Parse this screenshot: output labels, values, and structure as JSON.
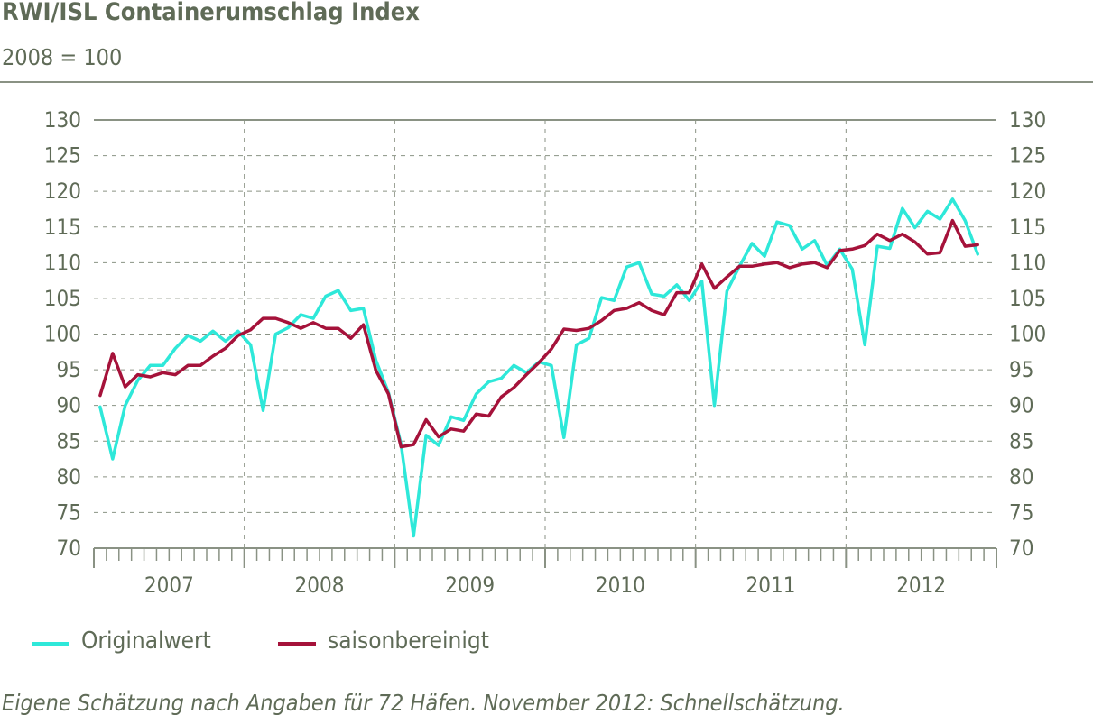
{
  "title": "RWI/ISL Containerumschlag Index",
  "subtitle": "2008 = 100",
  "caption": "Eigene Schätzung nach Angaben für 72 Häfen. November 2012: Schnellschätzung.",
  "colors": {
    "original": "#2ee8d9",
    "seasonal": "#a5123a",
    "grid": "#8a9284",
    "text": "#5f6b57"
  },
  "legend": {
    "original": "Originalwert",
    "seasonal": "saisonbereinigt"
  },
  "chart_data": {
    "type": "line",
    "ylim": [
      70,
      130
    ],
    "yticks": [
      70,
      75,
      80,
      85,
      90,
      95,
      100,
      105,
      110,
      115,
      120,
      125,
      130
    ],
    "ytick_labels": [
      "70",
      "75",
      "80",
      "85",
      "90",
      "95",
      "100",
      "105",
      "110",
      "115",
      "120",
      "125",
      "130"
    ],
    "years": [
      "2007",
      "2008",
      "2009",
      "2010",
      "2011",
      "2012"
    ],
    "x_unit": "month",
    "x_start": "2007-01",
    "grid": true,
    "legend_position": "bottom-left",
    "series": [
      {
        "name": "Originalwert",
        "color": "#2ee8d9",
        "values": [
          89.8,
          82.5,
          90.0,
          93.5,
          95.6,
          95.6,
          98.0,
          99.8,
          99.0,
          100.4,
          99.0,
          100.4,
          98.5,
          89.3,
          100.0,
          100.9,
          102.7,
          102.2,
          105.3,
          106.1,
          103.3,
          103.6,
          96.3,
          91.8,
          84.6,
          71.7,
          85.8,
          84.4,
          88.4,
          87.9,
          91.6,
          93.3,
          93.8,
          95.6,
          94.6,
          96.1,
          95.6,
          85.5,
          98.5,
          99.4,
          105.1,
          104.7,
          109.4,
          110.0,
          105.6,
          105.3,
          106.9,
          104.7,
          107.4,
          90.0,
          106.0,
          109.5,
          112.7,
          110.9,
          115.7,
          115.2,
          111.9,
          113.1,
          109.6,
          111.9,
          109.1,
          98.5,
          112.3,
          112.0,
          117.6,
          114.9,
          117.2,
          116.1,
          118.9,
          115.9,
          111.2
        ]
      },
      {
        "name": "saisonbereinigt",
        "color": "#a5123a",
        "values": [
          91.4,
          97.3,
          92.6,
          94.3,
          94.0,
          94.6,
          94.3,
          95.6,
          95.6,
          96.9,
          98.0,
          99.8,
          100.6,
          102.2,
          102.2,
          101.6,
          100.8,
          101.6,
          100.8,
          100.8,
          99.4,
          101.3,
          94.9,
          91.6,
          84.2,
          84.5,
          88.0,
          85.6,
          86.7,
          86.4,
          88.8,
          88.5,
          91.2,
          92.5,
          94.3,
          96.0,
          97.9,
          100.7,
          100.5,
          100.8,
          101.9,
          103.3,
          103.6,
          104.4,
          103.3,
          102.7,
          105.8,
          105.8,
          109.8,
          106.4,
          108.0,
          109.5,
          109.5,
          109.8,
          110.0,
          109.3,
          109.8,
          110.0,
          109.3,
          111.7,
          111.9,
          112.4,
          114.0,
          113.1,
          114.0,
          112.9,
          111.2,
          111.4,
          115.9,
          112.3,
          112.5
        ]
      }
    ]
  }
}
